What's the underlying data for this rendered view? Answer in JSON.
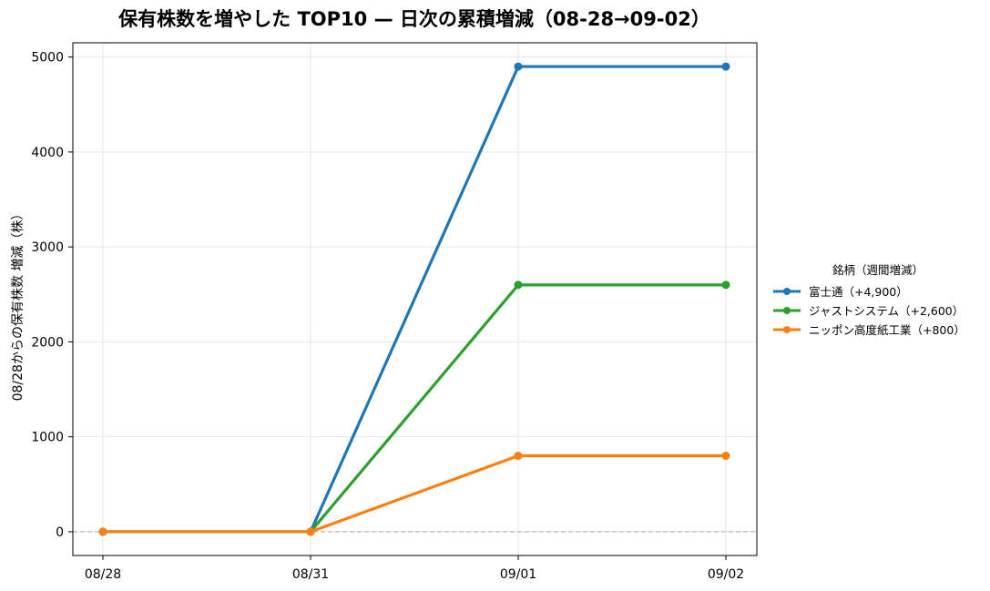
{
  "chart_data": {
    "type": "line",
    "title": "保有株数を増やした TOP10 — 日次の累積増減（08-28→09-02）",
    "xlabel": "",
    "ylabel": "08/28からの保有株数 増減（株）",
    "categories": [
      "08/28",
      "08/31",
      "09/01",
      "09/02"
    ],
    "ylim": [
      -250,
      5150
    ],
    "yticks": [
      0,
      1000,
      2000,
      3000,
      4000,
      5000
    ],
    "grid": true,
    "zero_line": "dashed",
    "legend": {
      "title": "銘柄（週間増減）",
      "placement": "right"
    },
    "series": [
      {
        "name": "富士通（+4,900）",
        "color": "#1f77b4",
        "values": [
          0,
          0,
          4900,
          4900
        ]
      },
      {
        "name": "ジャストシステム（+2,600）",
        "color": "#2ca02c",
        "values": [
          0,
          0,
          2600,
          2600
        ]
      },
      {
        "name": "ニッポン高度紙工業（+800）",
        "color": "#ff7f0e",
        "values": [
          0,
          0,
          800,
          800
        ]
      }
    ]
  }
}
